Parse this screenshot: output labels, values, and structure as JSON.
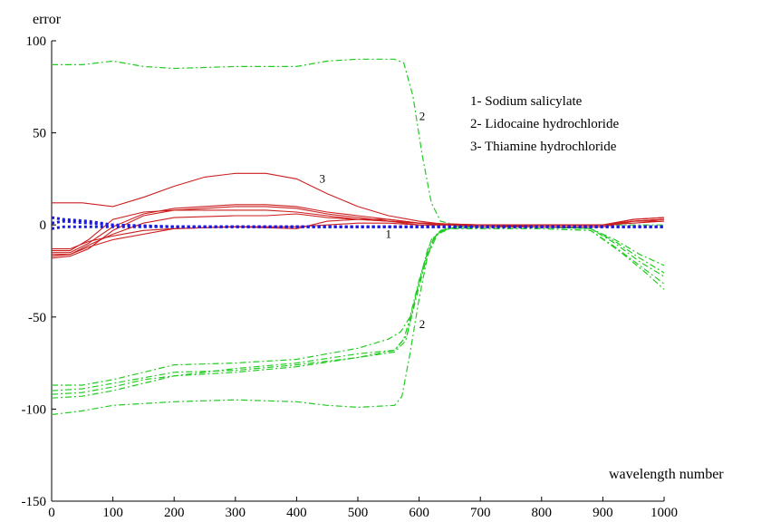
{
  "chart_data": {
    "type": "line",
    "title": "",
    "xlabel": "wavelength number",
    "ylabel": "error",
    "xlim": [
      0,
      1000
    ],
    "ylim": [
      -150,
      100
    ],
    "x_ticks": [
      0,
      100,
      200,
      300,
      400,
      500,
      600,
      700,
      800,
      900,
      1000
    ],
    "y_ticks": [
      100,
      50,
      0,
      -50,
      -100,
      -150
    ],
    "grid": false,
    "legend": {
      "placement": "top-right",
      "entries": [
        "1- Sodium salicylate",
        "2- Lidocaine hydrochloride",
        "3- Thiamine hydrochloride"
      ]
    },
    "annotations": [
      {
        "text": "3",
        "x": 442,
        "y": 23
      },
      {
        "text": "2",
        "x": 605,
        "y": 57
      },
      {
        "text": "1",
        "x": 550,
        "y": -7
      },
      {
        "text": "2",
        "x": 605,
        "y": -56
      }
    ],
    "colors": {
      "series1": "#1a1aee",
      "series2": "#22cc22",
      "series3": "#cc1f1f"
    },
    "series": [
      {
        "group": "1",
        "style": "dotted",
        "points": [
          [
            0,
            1
          ],
          [
            20,
            2
          ],
          [
            60,
            1
          ],
          [
            100,
            0
          ],
          [
            200,
            -1
          ],
          [
            400,
            -1
          ],
          [
            600,
            -1
          ],
          [
            800,
            -1
          ],
          [
            1000,
            -1
          ]
        ]
      },
      {
        "group": "1",
        "style": "dotted",
        "points": [
          [
            0,
            4
          ],
          [
            20,
            3
          ],
          [
            60,
            2
          ],
          [
            100,
            0
          ],
          [
            200,
            -1
          ],
          [
            400,
            -1
          ],
          [
            600,
            -1
          ],
          [
            800,
            -1
          ],
          [
            1000,
            -1
          ]
        ]
      },
      {
        "group": "1",
        "style": "dotted",
        "points": [
          [
            0,
            -2
          ],
          [
            20,
            -1
          ],
          [
            60,
            -1
          ],
          [
            100,
            -1
          ],
          [
            200,
            -1
          ],
          [
            400,
            -1
          ],
          [
            600,
            -1
          ],
          [
            800,
            -1
          ],
          [
            1000,
            -1
          ]
        ]
      },
      {
        "group": "2",
        "style": "dashdot",
        "points": [
          [
            0,
            87
          ],
          [
            50,
            87
          ],
          [
            100,
            89
          ],
          [
            150,
            86
          ],
          [
            200,
            85
          ],
          [
            300,
            86
          ],
          [
            400,
            86
          ],
          [
            450,
            89
          ],
          [
            500,
            90
          ],
          [
            560,
            90
          ],
          [
            575,
            88
          ],
          [
            590,
            70
          ],
          [
            605,
            38
          ],
          [
            620,
            12
          ],
          [
            635,
            2
          ],
          [
            660,
            0
          ],
          [
            700,
            0
          ],
          [
            800,
            0
          ],
          [
            900,
            0
          ],
          [
            1000,
            0
          ]
        ]
      },
      {
        "group": "2",
        "style": "dashdot",
        "points": [
          [
            0,
            -87
          ],
          [
            50,
            -87
          ],
          [
            100,
            -84
          ],
          [
            150,
            -80
          ],
          [
            200,
            -76
          ],
          [
            300,
            -75
          ],
          [
            400,
            -73
          ],
          [
            500,
            -67
          ],
          [
            550,
            -62
          ],
          [
            570,
            -58
          ],
          [
            585,
            -50
          ],
          [
            600,
            -30
          ],
          [
            620,
            -8
          ],
          [
            640,
            -2
          ],
          [
            700,
            -1
          ],
          [
            800,
            -1
          ],
          [
            880,
            -2
          ],
          [
            920,
            -10
          ],
          [
            960,
            -20
          ],
          [
            1000,
            -28
          ]
        ]
      },
      {
        "group": "2",
        "style": "dashdot",
        "points": [
          [
            0,
            -94
          ],
          [
            50,
            -93
          ],
          [
            100,
            -90
          ],
          [
            150,
            -86
          ],
          [
            200,
            -82
          ],
          [
            300,
            -80
          ],
          [
            400,
            -77
          ],
          [
            500,
            -72
          ],
          [
            560,
            -68
          ],
          [
            575,
            -62
          ],
          [
            590,
            -45
          ],
          [
            605,
            -25
          ],
          [
            625,
            -6
          ],
          [
            645,
            -2
          ],
          [
            700,
            -2
          ],
          [
            800,
            -2
          ],
          [
            880,
            -3
          ],
          [
            920,
            -12
          ],
          [
            960,
            -22
          ],
          [
            1000,
            -32
          ]
        ]
      },
      {
        "group": "2",
        "style": "dashdot",
        "points": [
          [
            0,
            -90
          ],
          [
            50,
            -89
          ],
          [
            100,
            -86
          ],
          [
            150,
            -83
          ],
          [
            200,
            -80
          ],
          [
            300,
            -79
          ],
          [
            400,
            -76
          ],
          [
            500,
            -72
          ],
          [
            560,
            -69
          ],
          [
            578,
            -63
          ],
          [
            595,
            -40
          ],
          [
            612,
            -18
          ],
          [
            630,
            -5
          ],
          [
            650,
            -2
          ],
          [
            700,
            -2
          ],
          [
            800,
            -2
          ],
          [
            880,
            -3
          ],
          [
            930,
            -15
          ],
          [
            970,
            -26
          ],
          [
            1000,
            -35
          ]
        ]
      },
      {
        "group": "2",
        "style": "dashdot",
        "points": [
          [
            0,
            -92
          ],
          [
            50,
            -91
          ],
          [
            100,
            -88
          ],
          [
            150,
            -84
          ],
          [
            200,
            -82
          ],
          [
            300,
            -78
          ],
          [
            400,
            -75
          ],
          [
            500,
            -70
          ],
          [
            560,
            -68
          ],
          [
            580,
            -60
          ],
          [
            597,
            -35
          ],
          [
            615,
            -12
          ],
          [
            635,
            -3
          ],
          [
            660,
            -1
          ],
          [
            700,
            -1
          ],
          [
            800,
            -1
          ],
          [
            880,
            -2
          ],
          [
            920,
            -8
          ],
          [
            960,
            -16
          ],
          [
            1000,
            -22
          ]
        ]
      },
      {
        "group": "2",
        "style": "dashdot",
        "points": [
          [
            0,
            -103
          ],
          [
            50,
            -101
          ],
          [
            100,
            -98
          ],
          [
            200,
            -96
          ],
          [
            300,
            -95
          ],
          [
            400,
            -96
          ],
          [
            450,
            -98
          ],
          [
            500,
            -99
          ],
          [
            560,
            -98
          ],
          [
            572,
            -93
          ],
          [
            585,
            -70
          ],
          [
            600,
            -40
          ],
          [
            615,
            -15
          ],
          [
            630,
            -4
          ],
          [
            660,
            -1
          ],
          [
            700,
            -1
          ],
          [
            800,
            -1
          ],
          [
            880,
            -2
          ],
          [
            920,
            -9
          ],
          [
            960,
            -18
          ],
          [
            1000,
            -26
          ]
        ]
      },
      {
        "group": "3",
        "style": "solid",
        "points": [
          [
            0,
            12
          ],
          [
            50,
            12
          ],
          [
            100,
            10
          ],
          [
            150,
            15
          ],
          [
            200,
            21
          ],
          [
            250,
            26
          ],
          [
            300,
            28
          ],
          [
            350,
            28
          ],
          [
            400,
            25
          ],
          [
            450,
            17
          ],
          [
            500,
            10
          ],
          [
            550,
            5
          ],
          [
            600,
            2
          ],
          [
            650,
            0
          ],
          [
            700,
            0
          ],
          [
            800,
            0
          ],
          [
            900,
            0
          ],
          [
            950,
            3
          ],
          [
            1000,
            4
          ]
        ]
      },
      {
        "group": "3",
        "style": "solid",
        "points": [
          [
            0,
            -16
          ],
          [
            30,
            -16
          ],
          [
            60,
            -12
          ],
          [
            100,
            -8
          ],
          [
            200,
            -2
          ],
          [
            300,
            -1
          ],
          [
            400,
            -2
          ],
          [
            450,
            2
          ],
          [
            500,
            3
          ],
          [
            550,
            3
          ],
          [
            600,
            1
          ],
          [
            700,
            0
          ],
          [
            800,
            0
          ],
          [
            900,
            0
          ],
          [
            950,
            2
          ],
          [
            1000,
            3
          ]
        ]
      },
      {
        "group": "3",
        "style": "solid",
        "points": [
          [
            0,
            -18
          ],
          [
            30,
            -17
          ],
          [
            60,
            -13
          ],
          [
            100,
            -3
          ],
          [
            150,
            5
          ],
          [
            200,
            8
          ],
          [
            300,
            10
          ],
          [
            350,
            10
          ],
          [
            400,
            9
          ],
          [
            450,
            6
          ],
          [
            500,
            4
          ],
          [
            550,
            2
          ],
          [
            600,
            1
          ],
          [
            700,
            0
          ],
          [
            800,
            -1
          ],
          [
            900,
            -1
          ],
          [
            950,
            2
          ],
          [
            1000,
            3
          ]
        ]
      },
      {
        "group": "3",
        "style": "solid",
        "points": [
          [
            0,
            -15
          ],
          [
            30,
            -15
          ],
          [
            60,
            -10
          ],
          [
            100,
            -1
          ],
          [
            150,
            6
          ],
          [
            200,
            9
          ],
          [
            300,
            11
          ],
          [
            350,
            11
          ],
          [
            400,
            10
          ],
          [
            450,
            7
          ],
          [
            500,
            5
          ],
          [
            550,
            3
          ],
          [
            600,
            1
          ],
          [
            700,
            0
          ],
          [
            800,
            0
          ],
          [
            900,
            0
          ],
          [
            950,
            1
          ],
          [
            1000,
            2
          ]
        ]
      },
      {
        "group": "3",
        "style": "solid",
        "points": [
          [
            0,
            -14
          ],
          [
            30,
            -14
          ],
          [
            60,
            -8
          ],
          [
            100,
            3
          ],
          [
            150,
            7
          ],
          [
            200,
            8
          ],
          [
            300,
            8
          ],
          [
            350,
            8
          ],
          [
            400,
            7
          ],
          [
            450,
            5
          ],
          [
            500,
            3
          ],
          [
            550,
            2
          ],
          [
            600,
            1
          ],
          [
            700,
            -1
          ],
          [
            800,
            -1
          ],
          [
            900,
            -1
          ],
          [
            950,
            2
          ],
          [
            1000,
            2
          ]
        ]
      },
      {
        "group": "3",
        "style": "solid",
        "points": [
          [
            0,
            -17
          ],
          [
            30,
            -16
          ],
          [
            60,
            -11
          ],
          [
            100,
            -5
          ],
          [
            150,
            1
          ],
          [
            200,
            4
          ],
          [
            300,
            5
          ],
          [
            350,
            5
          ],
          [
            400,
            6
          ],
          [
            450,
            4
          ],
          [
            500,
            3
          ],
          [
            550,
            2
          ],
          [
            600,
            0
          ],
          [
            700,
            0
          ],
          [
            800,
            0
          ],
          [
            900,
            0
          ],
          [
            950,
            3
          ],
          [
            1000,
            4
          ]
        ]
      },
      {
        "group": "3",
        "style": "solid",
        "points": [
          [
            0,
            -13
          ],
          [
            30,
            -13
          ],
          [
            60,
            -9
          ],
          [
            100,
            -6
          ],
          [
            150,
            -3
          ],
          [
            200,
            -2
          ],
          [
            300,
            -1
          ],
          [
            400,
            -1
          ],
          [
            450,
            0
          ],
          [
            500,
            1
          ],
          [
            550,
            1
          ],
          [
            600,
            0
          ],
          [
            700,
            0
          ],
          [
            800,
            0
          ],
          [
            900,
            0
          ],
          [
            950,
            2
          ],
          [
            1000,
            3
          ]
        ]
      }
    ]
  }
}
